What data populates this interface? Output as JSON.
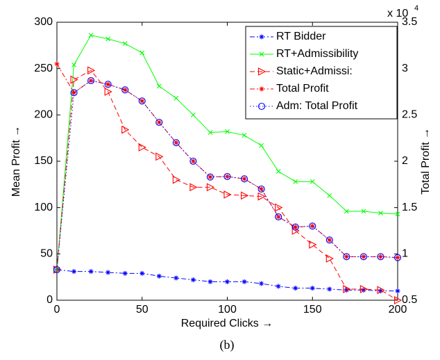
{
  "chart_data": {
    "type": "line",
    "xlabel": "Required Clicks →",
    "ylabel": "Mean  Profit →",
    "y2label": "Total Profit →",
    "y2_multiplier_base": "x 10",
    "y2_multiplier_exponent": "4",
    "caption": "(b)",
    "x": [
      0,
      10,
      20,
      30,
      40,
      50,
      60,
      70,
      80,
      90,
      100,
      110,
      120,
      130,
      140,
      150,
      160,
      170,
      180,
      190,
      200
    ],
    "xlim": [
      0,
      200
    ],
    "xticks": [
      0,
      50,
      100,
      150,
      200
    ],
    "ylim": [
      0,
      300
    ],
    "yticks": [
      0,
      50,
      100,
      150,
      200,
      250,
      300
    ],
    "y2lim": [
      0.5,
      3.5
    ],
    "y2ticks": [
      0.5,
      1,
      1.5,
      2,
      2.5,
      3,
      3.5
    ],
    "grid": false,
    "legend": "upper right",
    "series": [
      {
        "name": "RT Bidder",
        "color": "#0000ff",
        "marker": "star",
        "linestyle": "dashdot",
        "axis": "y",
        "values": [
          33,
          31,
          31,
          30,
          29,
          29,
          26,
          24,
          22,
          20,
          20,
          20,
          18,
          15,
          13,
          13,
          12,
          11,
          11,
          10,
          10
        ]
      },
      {
        "name": "RT+Admissibility",
        "color": "#00ff00",
        "marker": "x",
        "linestyle": "solid",
        "axis": "y",
        "values": [
          33,
          254,
          286,
          282,
          277,
          267,
          231,
          218,
          200,
          181,
          182,
          178,
          167,
          139,
          128,
          128,
          113,
          96,
          96,
          94,
          93
        ]
      },
      {
        "name": "Static+Admissi:",
        "color": "#ff0000",
        "marker": "triangle-right",
        "linestyle": "dashed",
        "axis": "y",
        "values": [
          33,
          238,
          248,
          225,
          184,
          165,
          155,
          130,
          122,
          122,
          114,
          113,
          112,
          100,
          75,
          60,
          45,
          12,
          12,
          11,
          0
        ]
      },
      {
        "name": "Total Profit",
        "color": "#ff0000",
        "marker": "star",
        "linestyle": "dashdot",
        "axis": "y2",
        "values": [
          3.05,
          2.74,
          2.87,
          2.83,
          2.77,
          2.65,
          2.42,
          2.2,
          2.0,
          1.83,
          1.835,
          1.81,
          1.7,
          1.4,
          1.29,
          1.3,
          1.15,
          0.97,
          0.97,
          0.97,
          0.96
        ]
      },
      {
        "name": "Adm: Total Profit",
        "color": "#0000ff",
        "marker": "circle",
        "linestyle": "dotted",
        "axis": "y2",
        "values": [
          0.83,
          2.74,
          2.87,
          2.83,
          2.77,
          2.65,
          2.42,
          2.2,
          2.0,
          1.83,
          1.835,
          1.81,
          1.7,
          1.4,
          1.29,
          1.3,
          1.15,
          0.97,
          0.97,
          0.97,
          0.96
        ]
      }
    ]
  }
}
